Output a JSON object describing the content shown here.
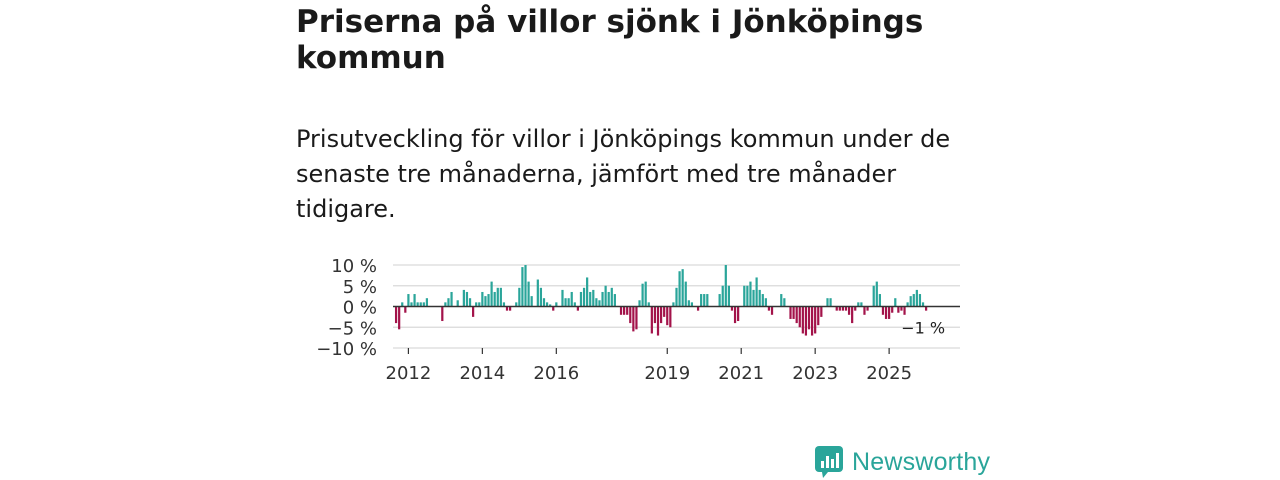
{
  "header": {
    "title": "Priserna på villor sjönk i Jönköpings kommun",
    "subtitle": "Prisutveckling för villor i Jönköpings kommun under de senaste tre månaderna, jämfört med tre månader tidigare."
  },
  "brand": {
    "name": "Newsworthy",
    "icon": "newsworthy-logo-icon"
  },
  "colors": {
    "positive": "#2aa59a",
    "negative": "#a3134a",
    "grid": "#d9d9d9",
    "zero": "#333333",
    "text": "#333333"
  },
  "chart_data": {
    "type": "bar",
    "title": "Priserna på villor sjönk i Jönköpings kommun",
    "ylabel": "",
    "xlabel": "",
    "ylim": [
      -10,
      10
    ],
    "yticks": [
      10,
      5,
      0,
      -5,
      -10
    ],
    "ytick_labels": [
      "10 %",
      "5 %",
      "0 %",
      "−5 %",
      "−10 %"
    ],
    "xticks": [
      2012,
      2014,
      2016,
      2019,
      2021,
      2023,
      2025
    ],
    "x_start": "2011-08",
    "x_end": "2026-12",
    "last_value_label": "−1 %",
    "series": [
      {
        "name": "Prisutveckling",
        "start": "2011-09",
        "frequency": "monthly",
        "values": [
          -4,
          -5.5,
          1,
          -1.5,
          3,
          1,
          3,
          1,
          1,
          1,
          2,
          0,
          0,
          0,
          0,
          -3.5,
          1,
          2,
          3.5,
          0,
          1.5,
          0,
          4,
          3.5,
          2,
          -2.5,
          1,
          1,
          3.5,
          2.5,
          3,
          6,
          3.5,
          4.5,
          4.5,
          1,
          -1,
          -1,
          0,
          1,
          4.5,
          9.5,
          10,
          6,
          2.5,
          0,
          6.5,
          4.5,
          2,
          1,
          0.5,
          -1,
          1,
          0,
          4,
          2,
          2,
          3.5,
          1,
          -1,
          3.5,
          4.5,
          7,
          3.5,
          4,
          2,
          1.5,
          3.5,
          5,
          3.5,
          4.5,
          3,
          0,
          -2,
          -2,
          -2,
          -4,
          -6,
          -5.5,
          1.5,
          5.5,
          6,
          1,
          -6.5,
          -4,
          -7,
          -4,
          -2.5,
          -4.5,
          -5,
          1,
          4.5,
          8.5,
          9,
          6,
          1.5,
          1,
          0,
          -1,
          3,
          3,
          3,
          0,
          0,
          0,
          3,
          5,
          10,
          5,
          -1,
          -4,
          -3.5,
          0,
          5,
          5,
          6,
          4,
          7,
          4,
          3,
          2,
          -1,
          -2,
          0,
          0,
          3,
          2,
          0,
          -3,
          -3,
          -4,
          -5,
          -6.5,
          -7,
          -5.5,
          -7,
          -6.5,
          -4.5,
          -2.5,
          0,
          2,
          2,
          0,
          -1,
          -1,
          -1,
          -1,
          -2,
          -4,
          -1,
          1,
          1,
          -2,
          -1,
          0,
          5,
          6,
          3,
          -2,
          -3,
          -3,
          -1.5,
          2,
          -1.5,
          -1,
          -2,
          1,
          2.5,
          3,
          4,
          3,
          1,
          -1
        ],
        "colors": {
          "positive": "#2aa59a",
          "negative": "#a3134a"
        }
      }
    ]
  }
}
